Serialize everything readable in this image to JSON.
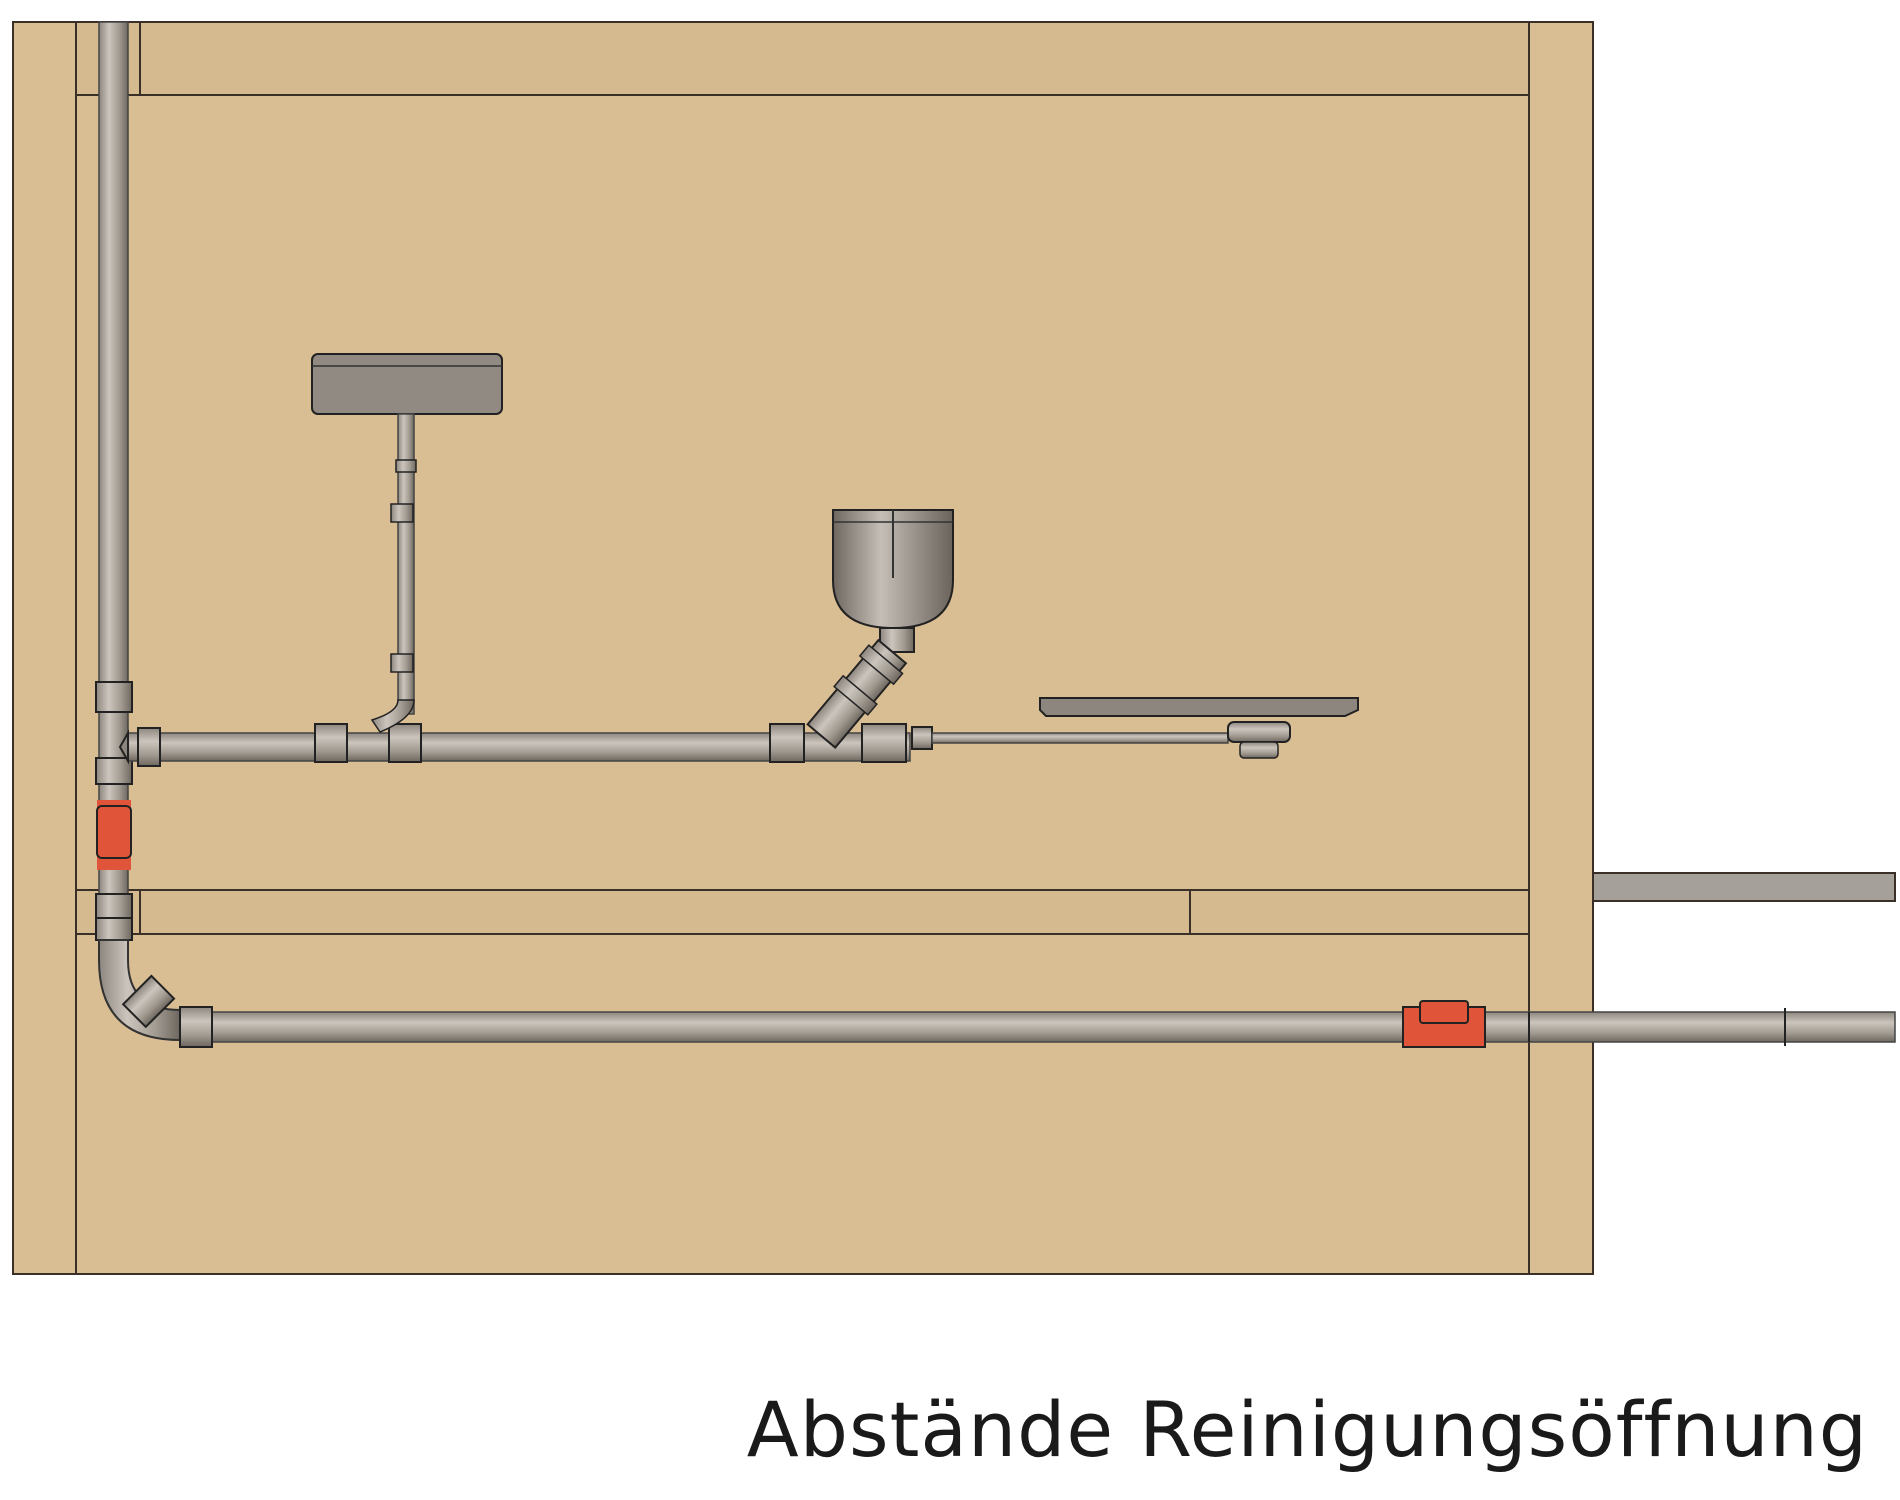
{
  "caption": "Abstände Reinigungsöffnung",
  "colors": {
    "board": "#d9bd93",
    "board_edge": "#3a3028",
    "pipe_light": "#b3aca3",
    "pipe_dark": "#716a62",
    "fitting_outline": "#222222",
    "cleanout_red": "#e0553a",
    "background": "#ffffff"
  },
  "components": {
    "wall_board": "wall-board",
    "vertical_stack": "vertical-drain-pipe",
    "upper_horizontal_drain": "upper-drain-pipe",
    "lower_horizontal_drain": "lower-drain-pipe",
    "cleanout_vertical": "cleanout-vertical",
    "cleanout_horizontal": "cleanout-horizontal",
    "cistern": "flush-cistern",
    "funnel_bowl": "funnel-bowl",
    "shower_tray": "shower-tray-drain"
  }
}
